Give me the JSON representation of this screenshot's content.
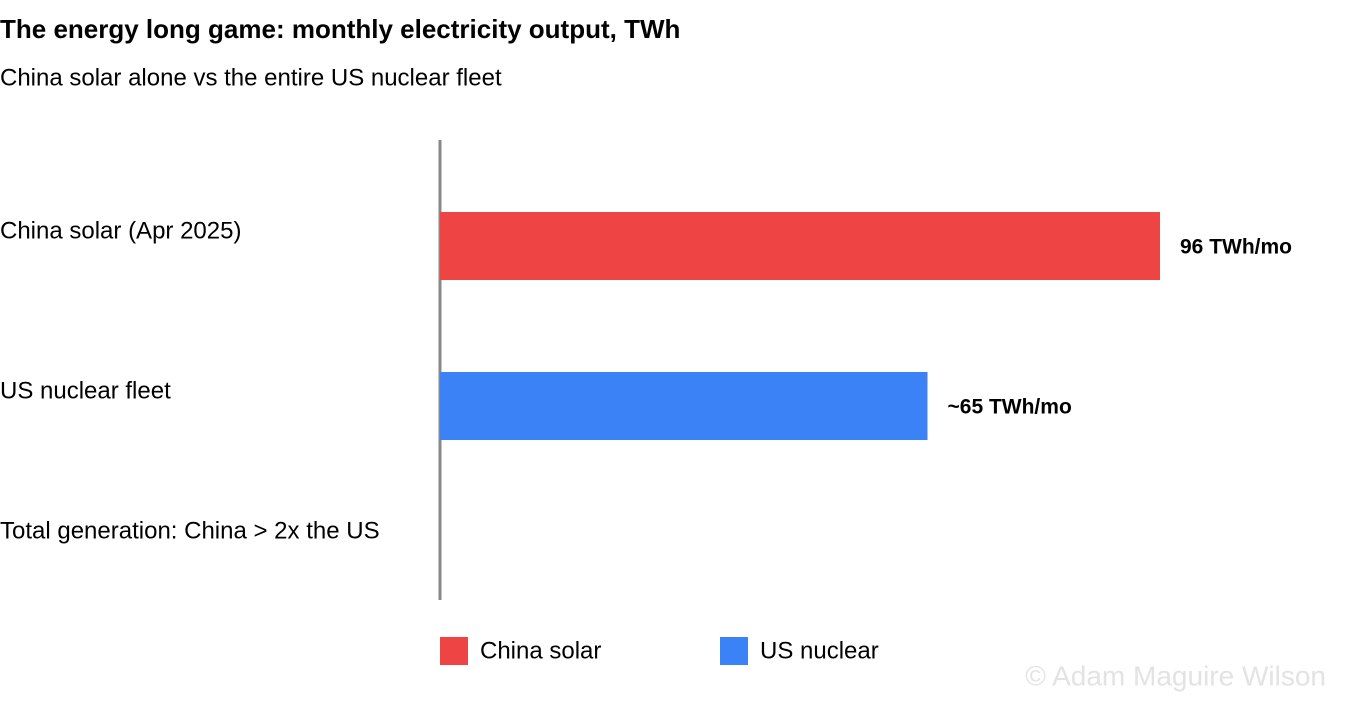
{
  "chart_data": {
    "type": "hbar",
    "title": "The energy long game: monthly electricity output, TWh",
    "subtitle": "China solar alone vs the entire US nuclear fleet",
    "categories": [
      "China solar (Apr 2025)",
      "US nuclear fleet",
      "Total generation: China > 2x the US"
    ],
    "series": [
      {
        "name": "China solar",
        "color": "#ef4444",
        "values": [
          96,
          null,
          null
        ],
        "value_labels": [
          "96 TWh/mo",
          null,
          null
        ]
      },
      {
        "name": "US nuclear",
        "color": "#3b82f6",
        "values": [
          null,
          65,
          null
        ],
        "value_labels": [
          null,
          "~65 TWh/mo",
          null
        ]
      }
    ],
    "xlim": [
      0,
      120
    ],
    "watermark": "© Adam Maguire Wilson"
  }
}
